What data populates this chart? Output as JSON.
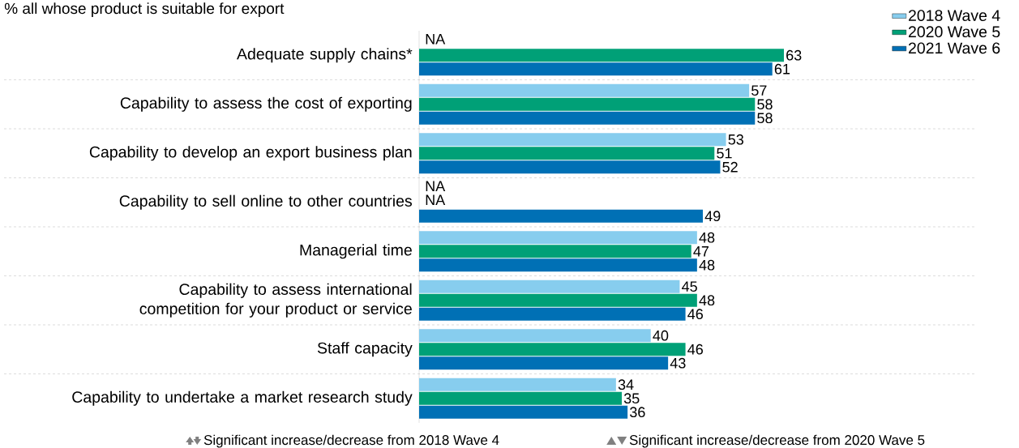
{
  "chart_data": {
    "type": "bar",
    "orientation": "horizontal",
    "title": "% all whose product is suitable for export",
    "categories": [
      "Adequate supply chains*",
      "Capability to assess the cost of exporting",
      "Capability to develop an export business plan",
      "Capability to sell online to other countries",
      "Managerial time",
      "Capability to assess international competition for your product or service",
      "Staff capacity",
      "Capability to undertake a market research study"
    ],
    "series": [
      {
        "name": "2018 Wave 4",
        "color": "#87cdee",
        "values": [
          null,
          57,
          53,
          null,
          48,
          45,
          40,
          34
        ],
        "value_labels": [
          "NA",
          "57",
          "53",
          "NA",
          "48",
          "45",
          "40",
          "34"
        ]
      },
      {
        "name": "2020 Wave 5",
        "color": "#00a077",
        "values": [
          63,
          58,
          51,
          null,
          47,
          48,
          46,
          35
        ],
        "value_labels": [
          "63",
          "58",
          "51",
          "NA",
          "47",
          "48",
          "46",
          "35"
        ]
      },
      {
        "name": "2021 Wave 6",
        "color": "#0070b5",
        "values": [
          61,
          58,
          52,
          49,
          48,
          46,
          43,
          36
        ],
        "value_labels": [
          "61",
          "58",
          "52",
          "49",
          "48",
          "46",
          "43",
          "36"
        ]
      }
    ],
    "legend": "top right",
    "annotations": [
      "Significant increase/decrease from 2018 Wave 4",
      "Significant increase/decrease from 2020 Wave 5"
    ]
  }
}
